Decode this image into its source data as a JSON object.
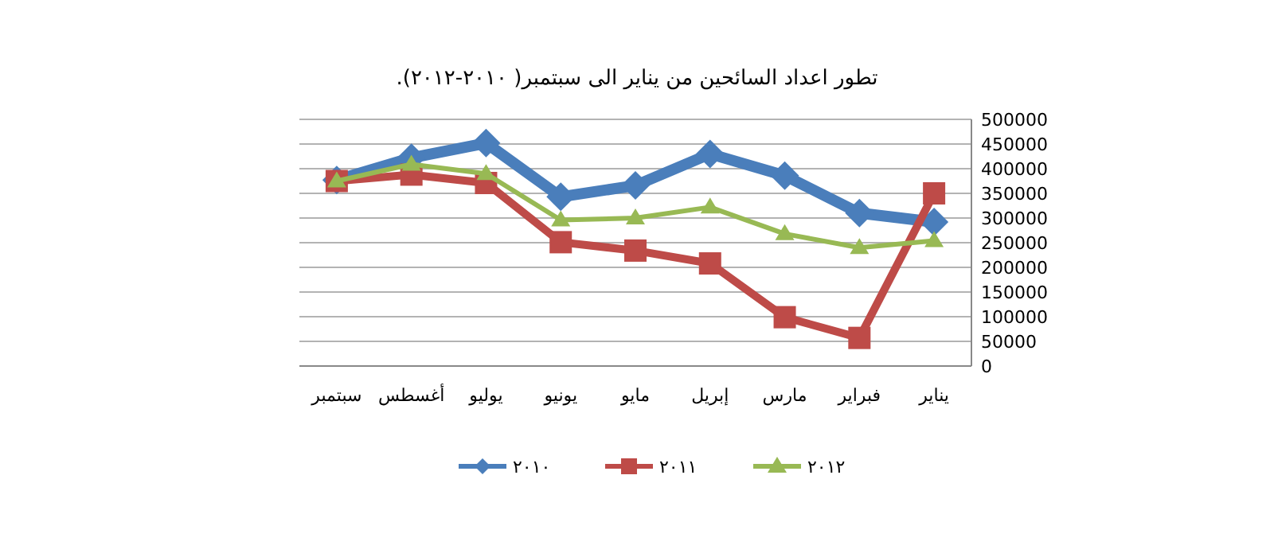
{
  "chart_data": {
    "type": "line",
    "title": "تطور اعداد السائحين من يناير الى سبتمبر(  ٢٠١٠-٢٠١٢).",
    "categories": [
      "سبتمبر",
      "أغسطس",
      "يوليو",
      "يونيو",
      "مايو",
      "إبريل",
      "مارس",
      "فبراير",
      "يناير"
    ],
    "series": [
      {
        "name": "٢٠١٠",
        "color": "#4a7ebb",
        "marker": "diamond",
        "values": [
          377000,
          422000,
          452000,
          343000,
          366000,
          430000,
          386000,
          310000,
          292000
        ]
      },
      {
        "name": "٢٠١١",
        "color": "#be4b48",
        "marker": "square",
        "values": [
          375000,
          388000,
          371000,
          251000,
          234000,
          208000,
          99000,
          57000,
          350000
        ]
      },
      {
        "name": "٢٠١٢",
        "color": "#98b954",
        "marker": "triangle",
        "values": [
          375000,
          409000,
          390000,
          296000,
          300000,
          322000,
          268000,
          240000,
          254000
        ]
      }
    ],
    "ylim": [
      0,
      500000
    ],
    "yticks": [
      0,
      50000,
      100000,
      150000,
      200000,
      250000,
      300000,
      350000,
      400000,
      450000,
      500000
    ],
    "grid": "y",
    "legend": "bottom",
    "line_style": "solid"
  }
}
